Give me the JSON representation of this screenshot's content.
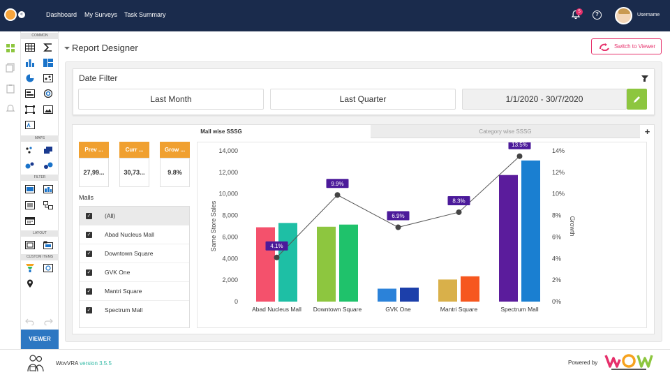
{
  "topbar": {
    "nav": [
      "Dashboard",
      "My Surveys",
      "Task Summary"
    ],
    "notification_count": "5",
    "username": "Username"
  },
  "toolbox": {
    "sections": [
      "COMMON",
      "MAPS",
      "FILTER",
      "LAYOUT",
      "CUSTOM ITEMS"
    ],
    "viewer_label": "VIEWER"
  },
  "header": {
    "title": "Report Designer",
    "switch_label": "Switch to Viewer"
  },
  "date_filter": {
    "title": "Date Filter",
    "options": [
      "Last Month",
      "Last Quarter"
    ],
    "range": "1/1/2020 - 30/7/2020"
  },
  "tabs": [
    "Mall wise SSSG",
    "Category wise SSSG"
  ],
  "kpis": [
    {
      "label": "Prev ...",
      "value": "27,99..."
    },
    {
      "label": "Curr ...",
      "value": "30,73..."
    },
    {
      "label": "Grow ...",
      "value": "9.8%"
    }
  ],
  "malls": {
    "label": "Malls",
    "items": [
      "(All)",
      "Abad Nucleus Mall",
      "Downtown Square",
      "GVK One",
      "Mantri Square",
      "Spectrum Mall"
    ]
  },
  "chart_data": {
    "type": "bar",
    "categories": [
      "Abad Nucleus Mall",
      "Downtown Square",
      "GVK One",
      "Mantri Square",
      "Spectrum Mall"
    ],
    "series": [
      {
        "values": [
          6900,
          6950,
          1200,
          2050,
          11750
        ]
      },
      {
        "values": [
          7300,
          7150,
          1300,
          2350,
          13100
        ]
      }
    ],
    "bar_colors": [
      [
        "#f4516c",
        "#1ebfa5"
      ],
      [
        "#8dc63f",
        "#1fc26b"
      ],
      [
        "#2b82d9",
        "#1c3faa"
      ],
      [
        "#d9b04a",
        "#f6571f"
      ],
      [
        "#5b1c9c",
        "#1a7fd1"
      ]
    ],
    "growth": {
      "values": [
        4.1,
        9.9,
        6.9,
        8.3,
        13.5
      ],
      "labels": [
        "4.1%",
        "9.9%",
        "6.9%",
        "8.3%",
        "13.5%"
      ]
    },
    "ylabel": "Same Store Sales",
    "y2label": "Growth",
    "ylim": [
      0,
      14000
    ],
    "y2lim": [
      0,
      14
    ],
    "yticks": [
      "0",
      "2,000",
      "4,000",
      "6,000",
      "8,000",
      "10,000",
      "12,000",
      "14,000"
    ],
    "y2ticks": [
      "0%",
      "2%",
      "4%",
      "6%",
      "8%",
      "10%",
      "12%",
      "14%"
    ]
  },
  "footer": {
    "app": "WovVRA",
    "version": "version 3.5.5",
    "powered": "Powered by"
  }
}
